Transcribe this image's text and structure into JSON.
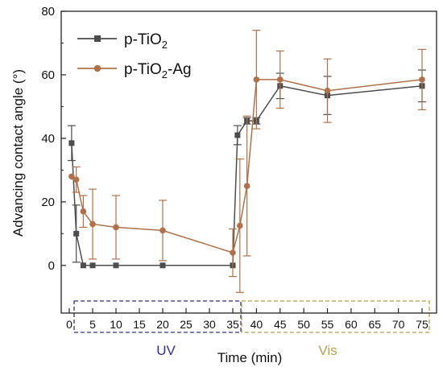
{
  "chart_data": {
    "type": "line",
    "xlabel": "Time (min)",
    "ylabel": "Advancing contact angle (°)",
    "ylim": [
      -15,
      80
    ],
    "x_tick_labels": [
      "0",
      "5",
      "10",
      "15",
      "20",
      "25",
      "30",
      "35",
      "40",
      "45",
      "50",
      "55",
      "60",
      "65",
      "70",
      "75"
    ],
    "y_tick_labels": [
      "0",
      "20",
      "40",
      "60",
      "80"
    ],
    "legend_position": "top-left",
    "regions": [
      {
        "label": "UV",
        "x_start": 0,
        "x_end": 35,
        "color": "#2f2f9a"
      },
      {
        "label": "Vis",
        "x_start": 35,
        "x_end": 75,
        "color": "#b5a24a"
      }
    ],
    "series": [
      {
        "name": "p-TiO2",
        "name_base": "p-TiO",
        "name_sub": "2",
        "name_suffix": "",
        "color": "#4d4d4d",
        "marker": "square",
        "points": [
          {
            "x": 0.5,
            "y": 38.5,
            "err": 5.5
          },
          {
            "x": 1.5,
            "y": 10,
            "err": 9
          },
          {
            "x": 3,
            "y": 0,
            "err": 0
          },
          {
            "x": 5,
            "y": 0,
            "err": 0
          },
          {
            "x": 10,
            "y": 0,
            "err": 0
          },
          {
            "x": 20,
            "y": 0,
            "err": 0
          },
          {
            "x": 35,
            "y": 0,
            "err": 0
          },
          {
            "x": 36,
            "y": 41,
            "err": 3
          },
          {
            "x": 38,
            "y": 45.5,
            "err": 1
          },
          {
            "x": 40,
            "y": 45.5,
            "err": 1
          },
          {
            "x": 45,
            "y": 56.5,
            "err": 4
          },
          {
            "x": 55,
            "y": 53.5,
            "err": 6
          },
          {
            "x": 75,
            "y": 56.5,
            "err": 5
          }
        ]
      },
      {
        "name": "p-TiO2-Ag",
        "name_base": "p-TiO",
        "name_sub": "2",
        "name_suffix": "-Ag",
        "color": "#b0714a",
        "marker": "circle",
        "points": [
          {
            "x": 0.5,
            "y": 28,
            "err": 0
          },
          {
            "x": 1.5,
            "y": 27,
            "err": 4
          },
          {
            "x": 3,
            "y": 17,
            "err": 5
          },
          {
            "x": 5,
            "y": 13,
            "err": 11
          },
          {
            "x": 10,
            "y": 12,
            "err": 10
          },
          {
            "x": 20,
            "y": 11,
            "err": 9.5
          },
          {
            "x": 35,
            "y": 4,
            "err": 7.5
          },
          {
            "x": 36.5,
            "y": 12.5,
            "err": 21
          },
          {
            "x": 38,
            "y": 25,
            "err": 22
          },
          {
            "x": 40,
            "y": 58.5,
            "err": 15.5
          },
          {
            "x": 45,
            "y": 58.5,
            "err": 9
          },
          {
            "x": 55,
            "y": 55,
            "err": 10
          },
          {
            "x": 75,
            "y": 58.5,
            "err": 9.5
          }
        ]
      }
    ]
  }
}
